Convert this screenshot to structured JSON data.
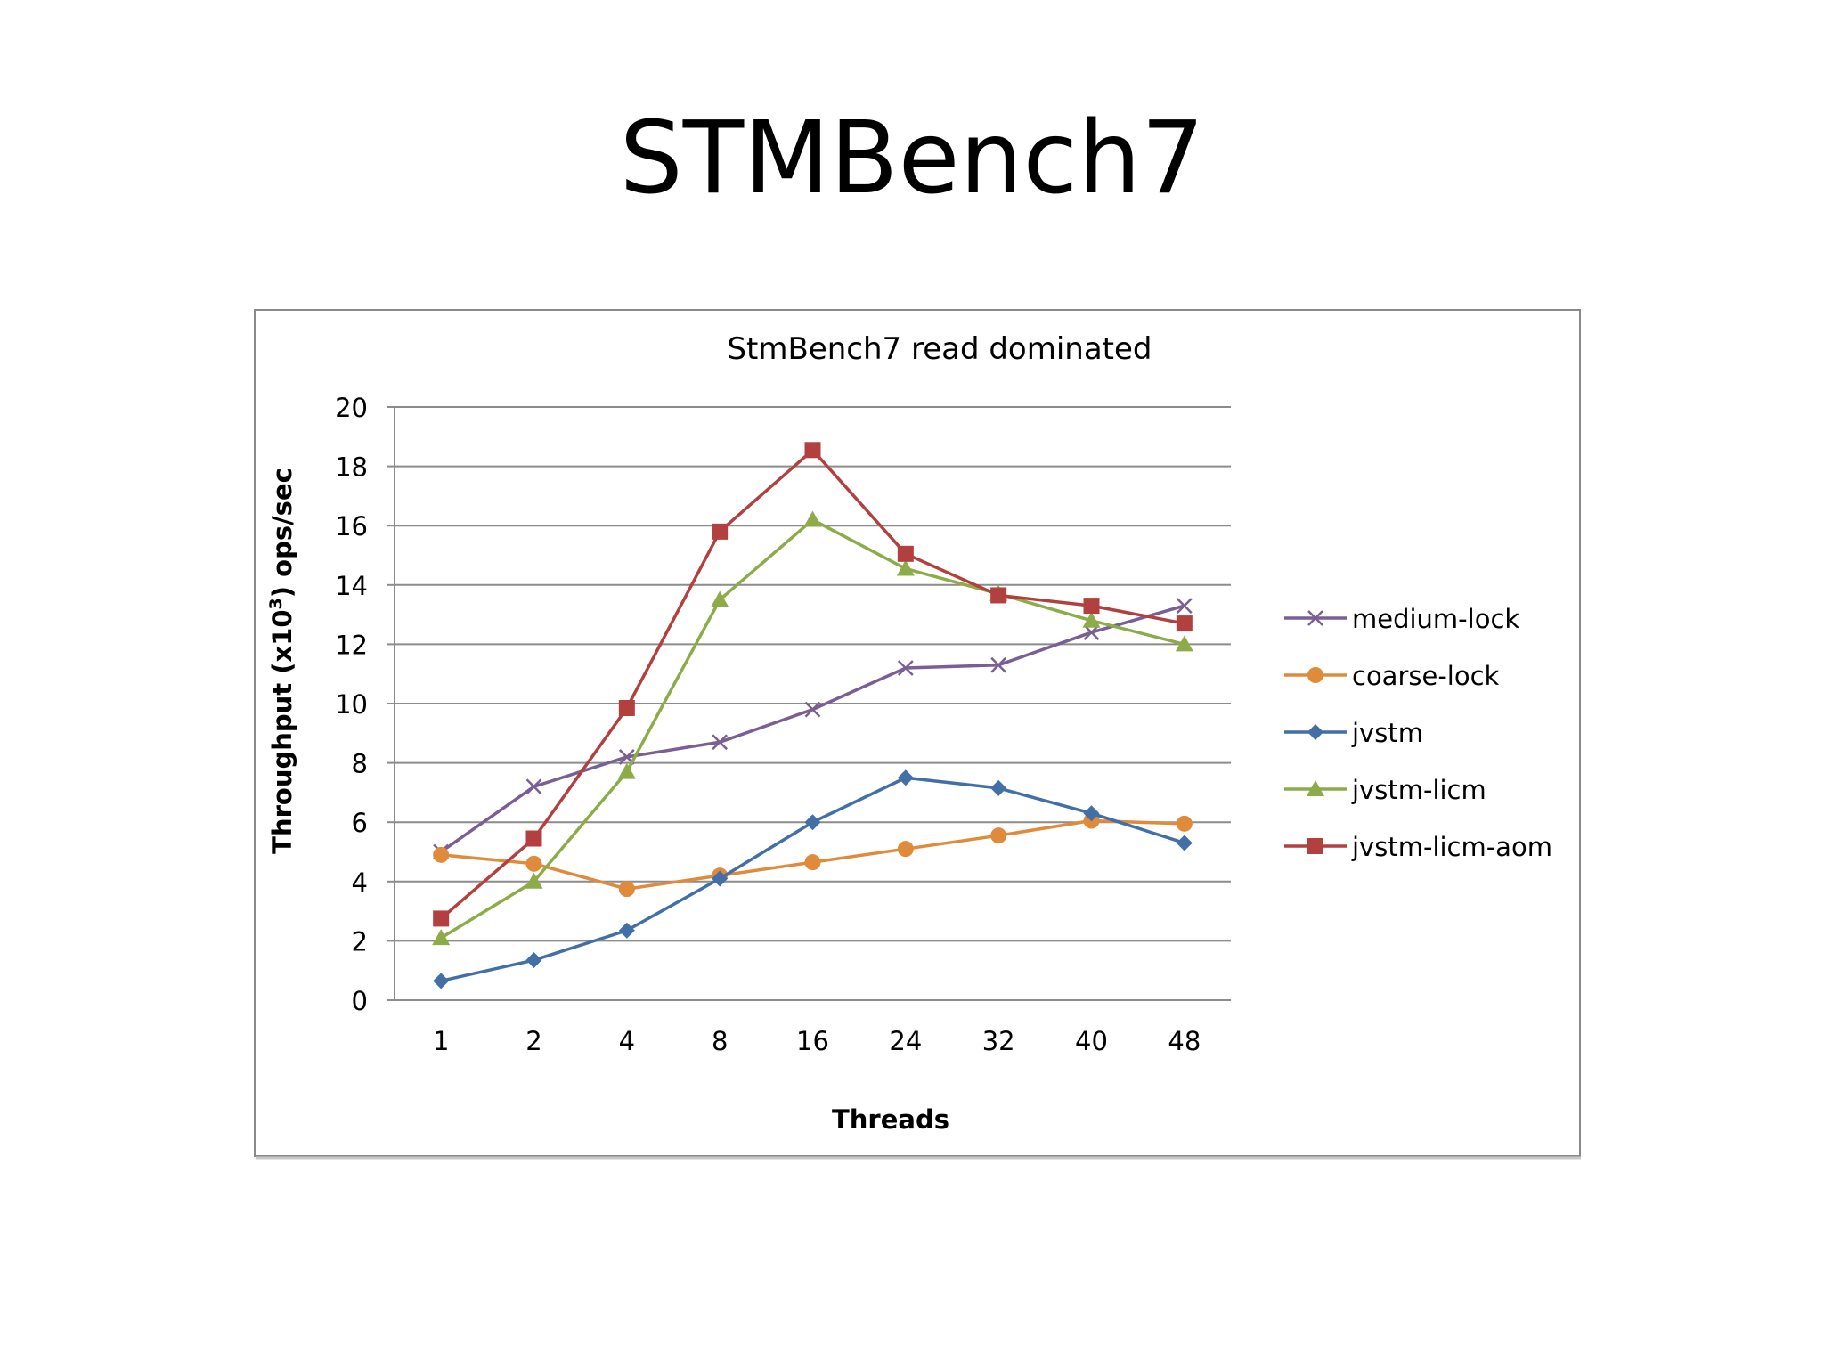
{
  "slide": {
    "title": "STMBench7"
  },
  "colors": {
    "medium-lock": "#7a5f94",
    "coarse-lock": "#e08a3c",
    "jvstm": "#436fa7",
    "jvstm-licm": "#8eab4a",
    "jvstm-licm-aom": "#b1403e",
    "gridline": "#8c8c8c",
    "frame": "#8a8a8a"
  },
  "chart_data": {
    "type": "line",
    "title": "StmBench7 read dominated",
    "xlabel": "Threads",
    "ylabel": "Throughput (x10",
    "ylabel_sup": "3",
    "ylabel_suffix": ") ops/sec",
    "categories": [
      "1",
      "2",
      "4",
      "8",
      "16",
      "24",
      "32",
      "40",
      "48"
    ],
    "ylim": [
      0,
      20
    ],
    "yticks": [
      0,
      2,
      4,
      6,
      8,
      10,
      12,
      14,
      16,
      18,
      20
    ],
    "grid": true,
    "legend_position": "right",
    "series": [
      {
        "name": "medium-lock",
        "marker": "x",
        "values": [
          5.0,
          7.2,
          8.2,
          8.7,
          9.8,
          11.2,
          11.3,
          12.4,
          13.3
        ]
      },
      {
        "name": "coarse-lock",
        "marker": "circle",
        "values": [
          4.9,
          4.6,
          3.75,
          4.2,
          4.65,
          5.1,
          5.55,
          6.05,
          5.95
        ]
      },
      {
        "name": "jvstm",
        "marker": "diamond",
        "values": [
          0.65,
          1.35,
          2.35,
          4.1,
          6.0,
          7.5,
          7.15,
          6.3,
          5.3
        ]
      },
      {
        "name": "jvstm-licm",
        "marker": "triangle",
        "values": [
          2.1,
          4.0,
          7.7,
          13.5,
          16.2,
          14.55,
          13.7,
          12.8,
          12.0
        ]
      },
      {
        "name": "jvstm-licm-aom",
        "marker": "square",
        "values": [
          2.75,
          5.45,
          9.85,
          15.8,
          18.55,
          15.05,
          13.65,
          13.3,
          12.7
        ]
      }
    ]
  }
}
